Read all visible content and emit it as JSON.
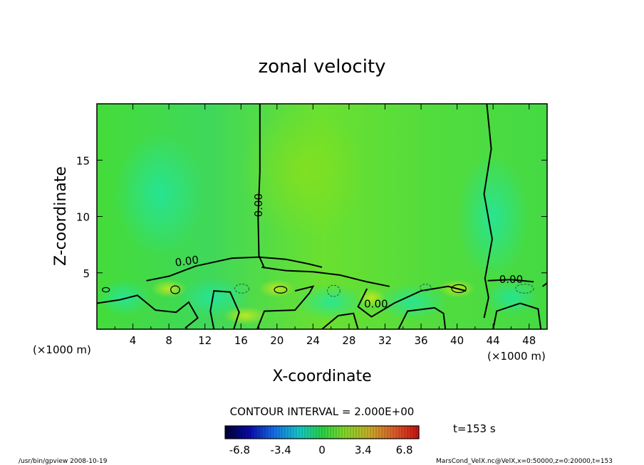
{
  "chart_data": {
    "type": "heatmap",
    "title": "zonal velocity",
    "xlabel": "X-coordinate",
    "ylabel": "Z-coordinate",
    "x_unit": "(×1000 m)",
    "y_unit": "(×1000 m)",
    "xlim": [
      0,
      50
    ],
    "ylim": [
      0,
      20
    ],
    "x_ticks": [
      4,
      8,
      12,
      16,
      20,
      24,
      28,
      32,
      36,
      40,
      44,
      48
    ],
    "y_ticks": [
      5,
      10,
      15
    ],
    "contour_labels": [
      "0.00",
      "0.00",
      "0.00",
      "0.00"
    ],
    "contour_interval_label": "CONTOUR INTERVAL = 2.000E+00",
    "time_label": "t=153 s",
    "colorbar": {
      "min": -8,
      "max": 8,
      "ticks": [
        -6.8,
        -3.4,
        0,
        3.4,
        6.8
      ],
      "tick_labels": [
        "-6.8",
        "-3.4",
        "0",
        "3.4",
        "6.8"
      ]
    }
  },
  "footer": {
    "left": "/usr/bin/gpview   2008-10-19",
    "right": "MarsCond_VelX.nc@VelX,x=0:50000,z=0:20000,t=153"
  }
}
